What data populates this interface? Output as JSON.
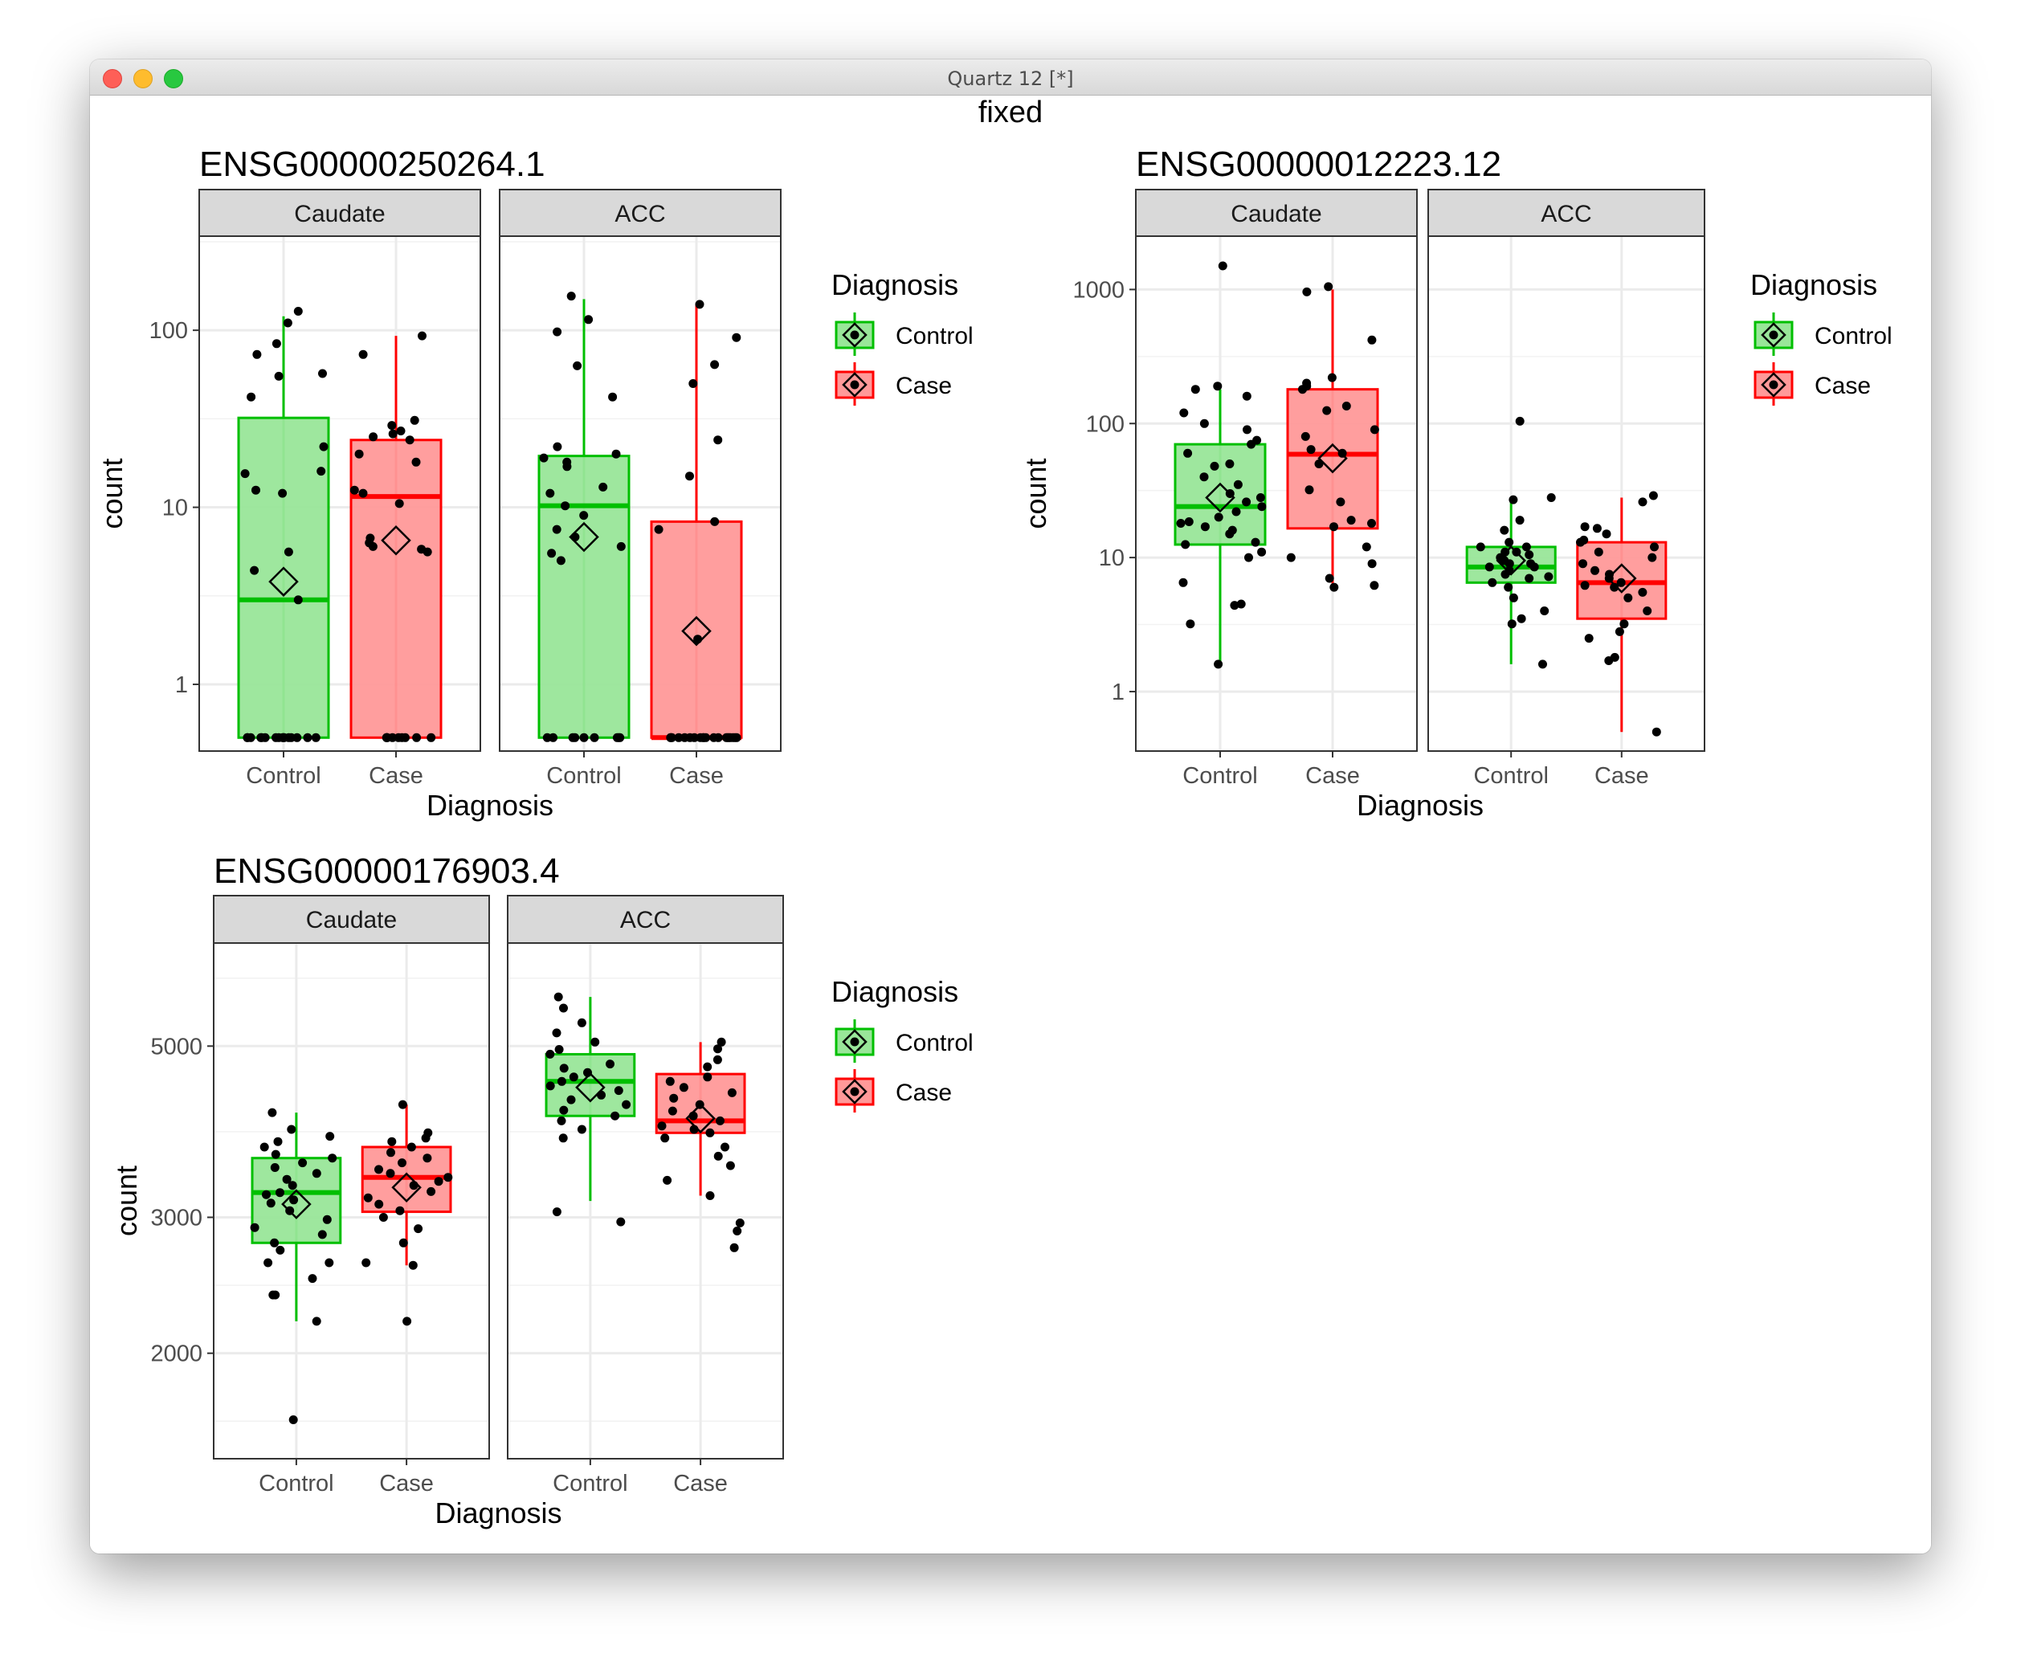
{
  "window": {
    "title": "Quartz 12 [*]"
  },
  "figure_title": "fixed",
  "colors": {
    "control_line": "#00bf00",
    "control_fill": "#99e699",
    "case_line": "#ff0000",
    "case_fill": "#ff9999",
    "strip": "#d9d9d9",
    "grid": "#ebebeb"
  },
  "chart_data": [
    {
      "type": "box",
      "title": "ENSG00000250264.1",
      "xlabel": "Diagnosis",
      "ylabel": "count",
      "yscale": "log10",
      "ylim": [
        0.42,
        340
      ],
      "yticks": [
        1,
        10,
        100
      ],
      "ytick_labels": [
        "1",
        "10",
        "100"
      ],
      "facets": [
        "Caudate",
        "ACC"
      ],
      "categories": [
        "Control",
        "Case"
      ],
      "legend": {
        "title": "Diagnosis",
        "entries": [
          "Control",
          "Case"
        ],
        "position": "right"
      },
      "boxes": [
        {
          "facet": "Caudate",
          "group": "Control",
          "lower": 0.5,
          "q1": 0.5,
          "median": 3.0,
          "q3": 32,
          "upper": 120,
          "mean": 3.8
        },
        {
          "facet": "Caudate",
          "group": "Case",
          "lower": 0.5,
          "q1": 0.5,
          "median": 11.5,
          "q3": 24,
          "upper": 93,
          "mean": 6.5
        },
        {
          "facet": "ACC",
          "group": "Control",
          "lower": 0.5,
          "q1": 0.5,
          "median": 10.2,
          "q3": 19.5,
          "upper": 150,
          "mean": 6.8
        },
        {
          "facet": "ACC",
          "group": "Case",
          "lower": 0.5,
          "q1": 0.5,
          "median": 0.5,
          "q3": 8.3,
          "upper": 140,
          "mean": 2.0
        }
      ],
      "points": [
        {
          "facet": "Caudate",
          "group": "Control",
          "values": [
            0.5,
            0.5,
            0.5,
            0.5,
            0.5,
            0.5,
            0.5,
            0.5,
            0.5,
            0.5,
            0.5,
            0.5,
            0.5,
            0.5,
            0.5,
            0.5,
            3.0,
            4.4,
            5.6,
            12,
            12.5,
            15.5,
            16,
            22,
            42,
            55,
            57,
            73,
            84,
            110,
            128
          ]
        },
        {
          "facet": "Caudate",
          "group": "Case",
          "values": [
            0.5,
            0.5,
            0.5,
            0.5,
            0.5,
            0.5,
            0.5,
            0.5,
            0.5,
            0.5,
            5.6,
            5.8,
            6.0,
            6.3,
            6.7,
            10.5,
            12,
            12.5,
            18,
            20,
            24,
            25,
            26,
            27,
            29,
            31,
            73,
            93
          ]
        },
        {
          "facet": "ACC",
          "group": "Control",
          "values": [
            0.5,
            0.5,
            0.5,
            0.5,
            0.5,
            0.5,
            0.5,
            0.5,
            0.5,
            5.0,
            5.5,
            6.0,
            6.8,
            7.5,
            9,
            10.2,
            12,
            13,
            17,
            18,
            19,
            20,
            22,
            42,
            63,
            98,
            115,
            156
          ]
        },
        {
          "facet": "ACC",
          "group": "Case",
          "values": [
            0.5,
            0.5,
            0.5,
            0.5,
            0.5,
            0.5,
            0.5,
            0.5,
            0.5,
            0.5,
            0.5,
            0.5,
            0.5,
            0.5,
            0.5,
            0.5,
            0.5,
            0.5,
            0.5,
            0.5,
            1.8,
            7.5,
            8.3,
            15,
            24,
            50,
            64,
            91,
            140
          ]
        }
      ]
    },
    {
      "type": "box",
      "title": "ENSG00000012223.12",
      "xlabel": "Diagnosis",
      "ylabel": "count",
      "yscale": "log10",
      "ylim": [
        0.36,
        2500
      ],
      "yticks": [
        1,
        10,
        100,
        1000
      ],
      "ytick_labels": [
        "1",
        "10",
        "100",
        "1000"
      ],
      "facets": [
        "Caudate",
        "ACC"
      ],
      "categories": [
        "Control",
        "Case"
      ],
      "legend": {
        "title": "Diagnosis",
        "entries": [
          "Control",
          "Case"
        ],
        "position": "right"
      },
      "boxes": [
        {
          "facet": "Caudate",
          "group": "Control",
          "lower": 1.6,
          "q1": 12.5,
          "median": 24,
          "q3": 70,
          "upper": 180,
          "mean": 28
        },
        {
          "facet": "Caudate",
          "group": "Case",
          "lower": 6,
          "q1": 16.5,
          "median": 59,
          "q3": 180,
          "upper": 1000,
          "mean": 55
        },
        {
          "facet": "ACC",
          "group": "Control",
          "lower": 1.6,
          "q1": 6.5,
          "median": 8.5,
          "q3": 12,
          "upper": 28,
          "mean": 9.5
        },
        {
          "facet": "ACC",
          "group": "Case",
          "lower": 0.5,
          "q1": 3.5,
          "median": 6.5,
          "q3": 13,
          "upper": 28,
          "mean": 7
        }
      ],
      "points": [
        {
          "facet": "Caudate",
          "group": "Control",
          "values": [
            1.6,
            3.2,
            4.4,
            4.5,
            6.5,
            10,
            11,
            12.5,
            13,
            15,
            16,
            17,
            18,
            18.5,
            20,
            22,
            24,
            26,
            28,
            30,
            35,
            40,
            48,
            50,
            60,
            70,
            75,
            90,
            100,
            120,
            160,
            180,
            190,
            1500
          ]
        },
        {
          "facet": "Caudate",
          "group": "Case",
          "values": [
            6,
            6.2,
            7,
            9,
            10,
            12,
            17,
            18,
            19,
            26,
            32,
            50,
            60,
            64,
            80,
            90,
            125,
            135,
            180,
            190,
            200,
            220,
            420,
            960,
            1050
          ]
        },
        {
          "facet": "ACC",
          "group": "Control",
          "values": [
            1.6,
            3.2,
            3.5,
            4,
            5,
            6,
            6.5,
            7,
            7.2,
            7.5,
            8,
            8,
            8.5,
            8.5,
            9,
            9,
            9.5,
            10,
            10.5,
            11,
            11,
            12,
            12,
            13,
            16,
            19,
            27,
            28,
            104
          ]
        },
        {
          "facet": "ACC",
          "group": "Case",
          "values": [
            0.5,
            1.7,
            1.8,
            2.5,
            2.8,
            3.2,
            4,
            5,
            5.5,
            6,
            6.2,
            6.5,
            7,
            7.5,
            8,
            9,
            10,
            11,
            12,
            13,
            13.5,
            15,
            16.5,
            17,
            26,
            29
          ]
        }
      ]
    },
    {
      "type": "box",
      "title": "ENSG00000176903.4",
      "xlabel": "Diagnosis",
      "ylabel": "count",
      "yscale": "log10",
      "ylim": [
        1460,
        6800
      ],
      "yticks": [
        2000,
        3000,
        5000
      ],
      "ytick_labels": [
        "2000",
        "3000",
        "5000"
      ],
      "facets": [
        "Caudate",
        "ACC"
      ],
      "categories": [
        "Control",
        "Case"
      ],
      "legend": {
        "title": "Diagnosis",
        "entries": [
          "Control",
          "Case"
        ],
        "position": "right"
      },
      "boxes": [
        {
          "facet": "Caudate",
          "group": "Control",
          "lower": 2200,
          "q1": 2780,
          "median": 3230,
          "q3": 3580,
          "upper": 4100,
          "mean": 3120
        },
        {
          "facet": "Caudate",
          "group": "Case",
          "lower": 2600,
          "q1": 3050,
          "median": 3380,
          "q3": 3700,
          "upper": 4200,
          "mean": 3280
        },
        {
          "facet": "ACC",
          "group": "Control",
          "lower": 3150,
          "q1": 4060,
          "median": 4500,
          "q3": 4880,
          "upper": 5790,
          "mean": 4420
        },
        {
          "facet": "ACC",
          "group": "Case",
          "lower": 3200,
          "q1": 3860,
          "median": 4000,
          "q3": 4600,
          "upper": 5060,
          "mean": 4030
        }
      ],
      "points": [
        {
          "facet": "Caudate",
          "group": "Control",
          "values": [
            1640,
            2200,
            2380,
            2380,
            2500,
            2620,
            2620,
            2720,
            2780,
            2850,
            2910,
            2980,
            3060,
            3130,
            3160,
            3210,
            3230,
            3300,
            3360,
            3420,
            3480,
            3530,
            3580,
            3620,
            3700,
            3760,
            3820,
            3900,
            4100
          ]
        },
        {
          "facet": "Caudate",
          "group": "Case",
          "values": [
            2200,
            2600,
            2620,
            2780,
            2900,
            3000,
            3060,
            3120,
            3180,
            3240,
            3300,
            3340,
            3380,
            3420,
            3460,
            3530,
            3580,
            3640,
            3700,
            3760,
            3800,
            3860,
            4200
          ]
        },
        {
          "facet": "ACC",
          "group": "Control",
          "values": [
            2960,
            3050,
            3800,
            3900,
            4000,
            4060,
            4130,
            4200,
            4260,
            4320,
            4380,
            4440,
            4500,
            4560,
            4620,
            4680,
            4740,
            4880,
            4950,
            5060,
            5200,
            5360,
            5600,
            5790
          ]
        },
        {
          "facet": "ACC",
          "group": "Case",
          "values": [
            2740,
            2880,
            2950,
            3200,
            3350,
            3500,
            3600,
            3700,
            3800,
            3860,
            3900,
            3940,
            4000,
            4060,
            4120,
            4200,
            4280,
            4350,
            4420,
            4500,
            4560,
            4700,
            4800,
            4960,
            5060
          ]
        }
      ]
    }
  ]
}
